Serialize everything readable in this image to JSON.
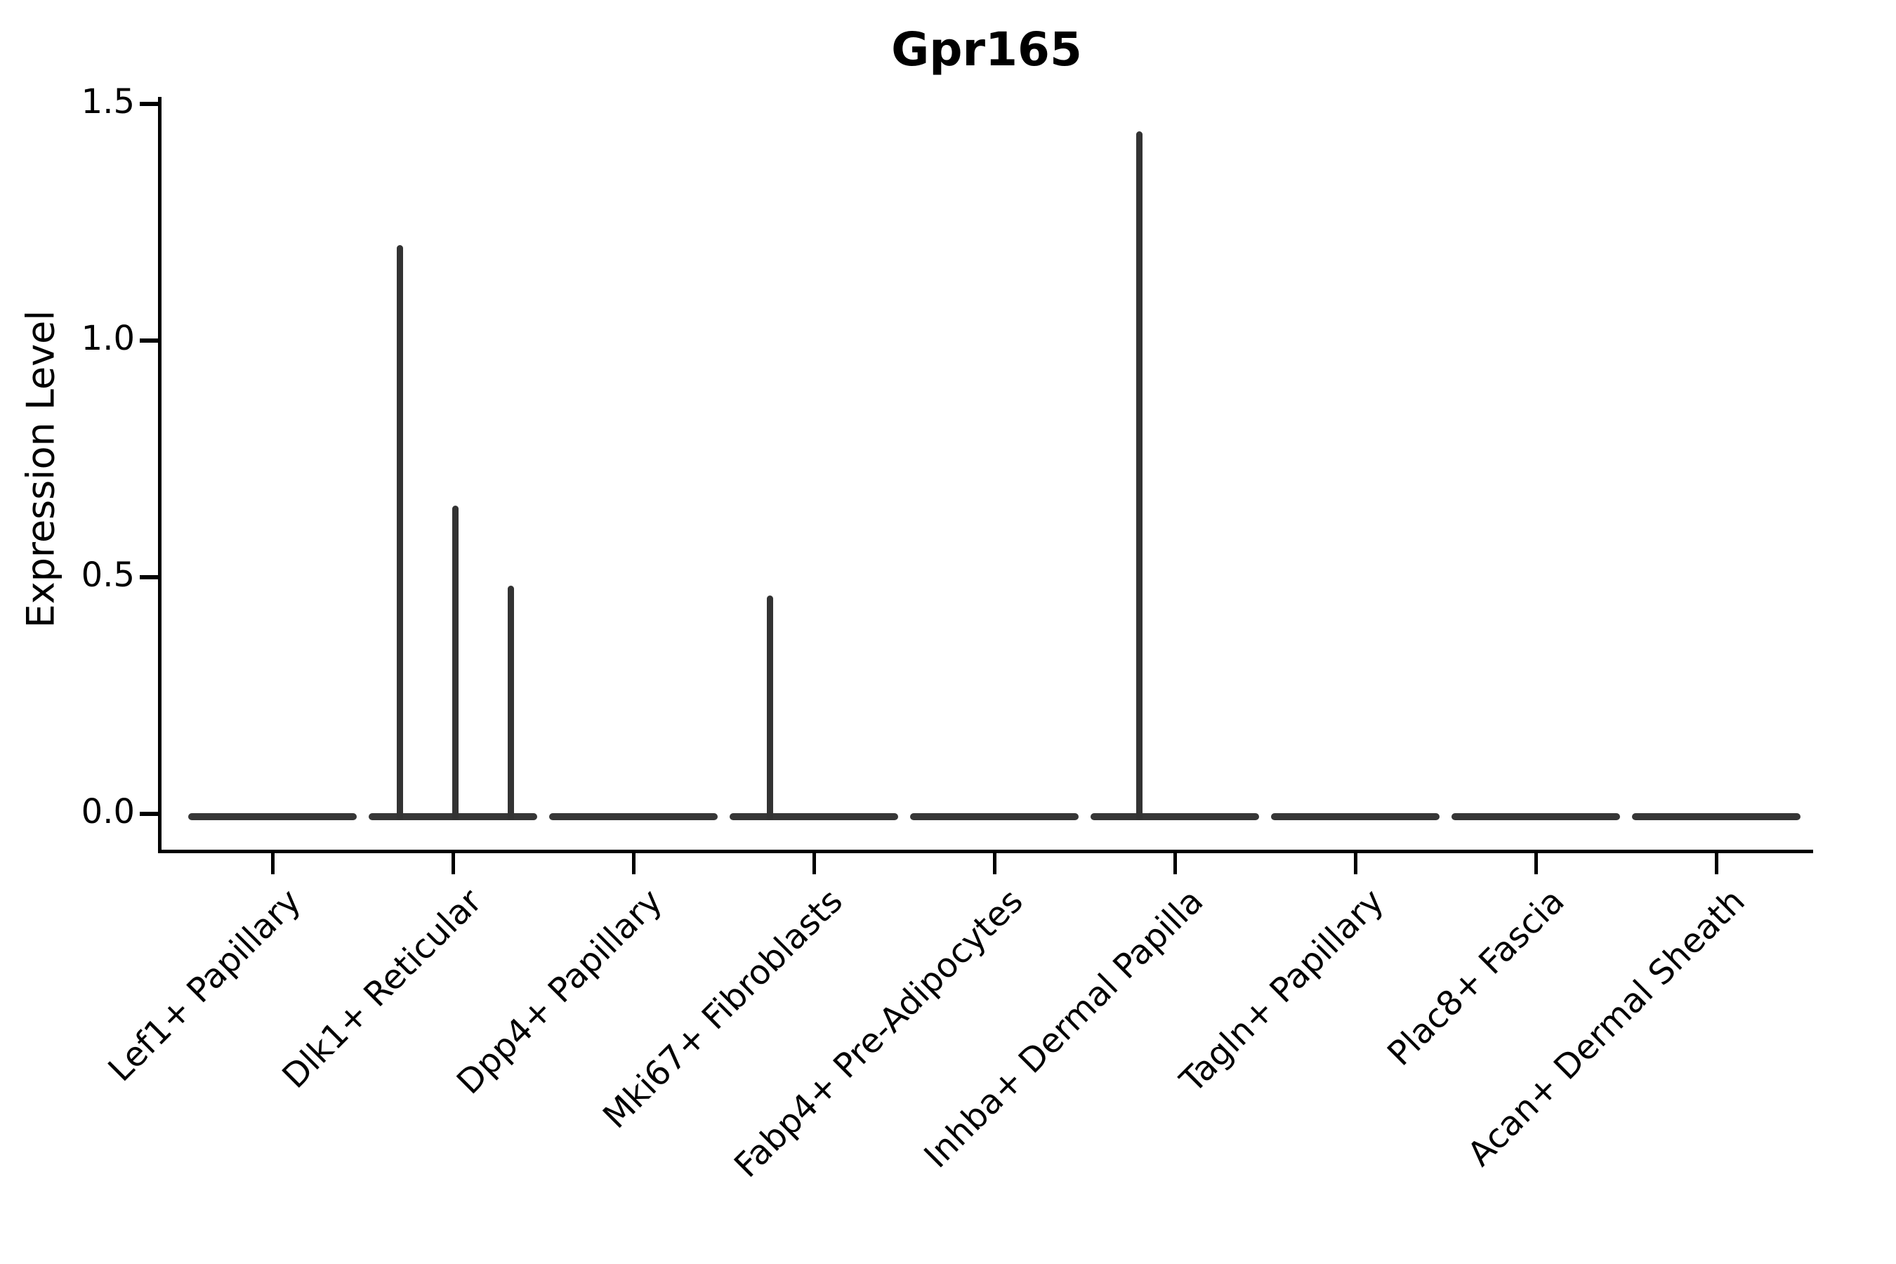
{
  "chart_data": {
    "type": "violin",
    "title": "Gpr165",
    "xlabel": "",
    "ylabel": "Expression Level",
    "yticks": [
      0.0,
      0.5,
      1.0,
      1.5
    ],
    "ylim": [
      -0.08,
      1.58
    ],
    "grid": false,
    "legend": null,
    "categories": [
      "Lef1+ Papillary",
      "Dlk1+ Reticular",
      "Dpp4+ Papillary",
      "Mki67+ Fibroblasts",
      "Fabp4+ Pre-Adipocytes",
      "Inhba+ Dermal Papilla",
      "Tagln+ Papillary",
      "Plac8+ Fascia",
      "Acan+ Dermal Sheath"
    ],
    "violins": [
      {
        "category": "Lef1+ Papillary",
        "baseline": 0.0,
        "spikes": []
      },
      {
        "category": "Dlk1+ Reticular",
        "baseline": 0.0,
        "spikes": [
          {
            "value": 1.2,
            "dx": -76
          },
          {
            "value": 0.65,
            "dx": 3
          },
          {
            "value": 0.48,
            "dx": 82
          }
        ]
      },
      {
        "category": "Dpp4+ Papillary",
        "baseline": 0.0,
        "spikes": []
      },
      {
        "category": "Mki67+ Fibroblasts",
        "baseline": 0.0,
        "spikes": [
          {
            "value": 0.46,
            "dx": -63
          }
        ]
      },
      {
        "category": "Fabp4+ Pre-Adipocytes",
        "baseline": 0.0,
        "spikes": []
      },
      {
        "category": "Inhba+ Dermal Papilla",
        "baseline": 0.0,
        "spikes": [
          {
            "value": 1.44,
            "dx": -51
          }
        ]
      },
      {
        "category": "Tagln+ Papillary",
        "baseline": 0.0,
        "spikes": []
      },
      {
        "category": "Plac8+ Fascia",
        "baseline": 0.0,
        "spikes": []
      },
      {
        "category": "Acan+ Dermal Sheath",
        "baseline": 0.0,
        "spikes": []
      }
    ],
    "colors": {
      "stroke": "#333333",
      "axis": "#000000",
      "background": "#ffffff"
    }
  }
}
